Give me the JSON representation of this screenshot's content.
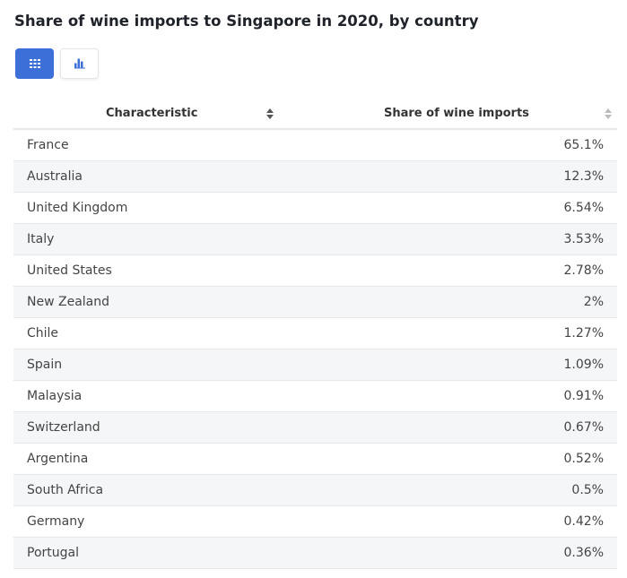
{
  "header": {
    "title": "Share of wine imports to Singapore in 2020, by country"
  },
  "table": {
    "columns": [
      "Characteristic",
      "Share of wine imports"
    ],
    "rows": [
      [
        "France",
        "65.1%"
      ],
      [
        "Australia",
        "12.3%"
      ],
      [
        "United Kingdom",
        "6.54%"
      ],
      [
        "Italy",
        "3.53%"
      ],
      [
        "United States",
        "2.78%"
      ],
      [
        "New Zealand",
        "2%"
      ],
      [
        "Chile",
        "1.27%"
      ],
      [
        "Spain",
        "1.09%"
      ],
      [
        "Malaysia",
        "0.91%"
      ],
      [
        "Switzerland",
        "0.67%"
      ],
      [
        "Argentina",
        "0.52%"
      ],
      [
        "South Africa",
        "0.5%"
      ],
      [
        "Germany",
        "0.42%"
      ],
      [
        "Portugal",
        "0.36%"
      ]
    ]
  }
}
